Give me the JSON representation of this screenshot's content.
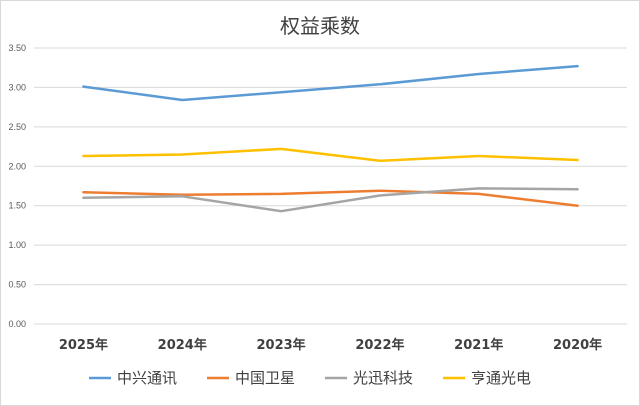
{
  "chart_data": {
    "type": "line",
    "title": "权益乘数",
    "categories": [
      "2025年",
      "2024年",
      "2023年",
      "2022年",
      "2021年",
      "2020年"
    ],
    "ylim": [
      0,
      3.5
    ],
    "yticks": [
      "0.00",
      "0.50",
      "1.00",
      "1.50",
      "2.00",
      "2.50",
      "3.00",
      "3.50"
    ],
    "grid": true,
    "legend_position": "bottom",
    "series": [
      {
        "name": "中兴通讯",
        "color": "#5b9bd5",
        "values": [
          3.01,
          2.84,
          2.94,
          3.04,
          3.17,
          3.27
        ]
      },
      {
        "name": "中国卫星",
        "color": "#ed7d31",
        "values": [
          1.67,
          1.64,
          1.65,
          1.69,
          1.65,
          1.5
        ]
      },
      {
        "name": "光迅科技",
        "color": "#a5a5a5",
        "values": [
          1.6,
          1.62,
          1.43,
          1.63,
          1.72,
          1.71
        ]
      },
      {
        "name": "亨通光电",
        "color": "#ffc000",
        "values": [
          2.13,
          2.15,
          2.22,
          2.07,
          2.13,
          2.08
        ]
      }
    ]
  }
}
